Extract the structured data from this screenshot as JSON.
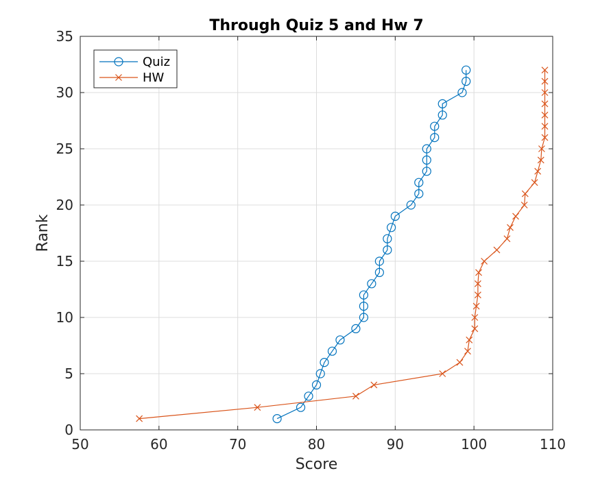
{
  "chart_data": {
    "type": "line",
    "title": "Through Quiz 5 and Hw 7",
    "xlabel": "Score",
    "ylabel": "Rank",
    "xlim": [
      50,
      110
    ],
    "ylim": [
      0,
      35
    ],
    "xticks": [
      50,
      60,
      70,
      80,
      90,
      100,
      110
    ],
    "yticks": [
      0,
      5,
      10,
      15,
      20,
      25,
      30,
      35
    ],
    "grid": true,
    "legend_position": "top-left",
    "series": [
      {
        "name": "Quiz",
        "color": "#0072BD",
        "marker": "circle",
        "x": [
          75,
          78,
          79,
          80,
          80.5,
          81,
          82,
          83,
          85,
          86,
          86,
          86,
          87,
          88,
          88,
          89,
          89,
          89.5,
          90,
          92,
          93,
          93,
          94,
          94,
          94,
          95,
          95,
          96,
          96,
          98.5,
          99,
          99
        ],
        "y": [
          1,
          2,
          3,
          4,
          5,
          6,
          7,
          8,
          9,
          10,
          11,
          12,
          13,
          14,
          15,
          16,
          17,
          18,
          19,
          20,
          21,
          22,
          23,
          24,
          25,
          26,
          27,
          28,
          29,
          30,
          31,
          32
        ]
      },
      {
        "name": "HW",
        "color": "#D95319",
        "marker": "x",
        "x": [
          57.5,
          72.5,
          85,
          87.3,
          96,
          98.2,
          99.2,
          99.4,
          100.1,
          100.1,
          100.3,
          100.5,
          100.5,
          100.6,
          101.3,
          102.9,
          104.2,
          104.6,
          105.3,
          106.4,
          106.5,
          107.7,
          108.1,
          108.5,
          108.6,
          109,
          109,
          109,
          109,
          109,
          109,
          109
        ],
        "y": [
          1,
          2,
          3,
          4,
          5,
          6,
          7,
          8,
          9,
          10,
          11,
          12,
          13,
          14,
          15,
          16,
          17,
          18,
          19,
          20,
          21,
          22,
          23,
          24,
          25,
          26,
          27,
          28,
          29,
          30,
          31,
          32
        ]
      }
    ]
  }
}
